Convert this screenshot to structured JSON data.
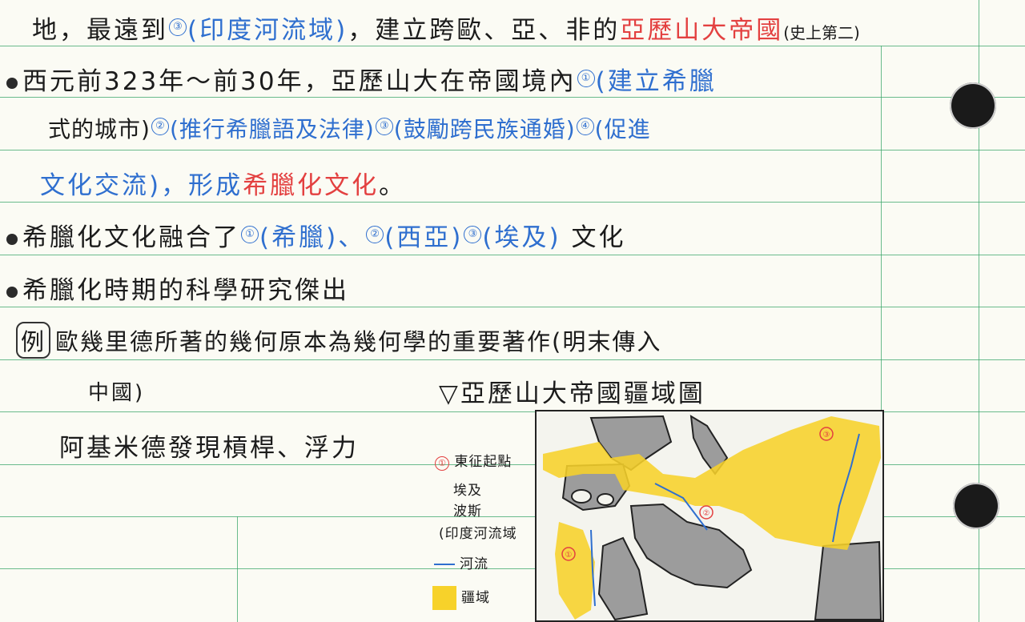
{
  "lines": {
    "l1": {
      "p1": "地，最遠到",
      "n1": "③",
      "p2": "(印度河流域)",
      "p3": "，建立跨歐、亞、非的",
      "red": "亞歷山大帝國",
      "tail": "(史上第二)"
    },
    "l2": {
      "p1": "西元前323年～前30年，亞歷山大在帝國境內",
      "n1": "①",
      "p2": "(建立希臘"
    },
    "l3": {
      "p1": "式的城市)",
      "n2": "②",
      "p2": "(推行希臘語及法律)",
      "n3": "③",
      "p3": "(鼓勵跨民族通婚)",
      "n4": "④",
      "p4": "(促進"
    },
    "l4": {
      "p1": "文化交流)，形成",
      "red": "希臘化文化",
      "p2": "。"
    },
    "l5": {
      "p1": "希臘化文化融合了",
      "n1": "①",
      "p2": "(希臘)、",
      "n2": "②",
      "p3": "(西亞)",
      "n3": "③",
      "p4": "(埃及)",
      "p5": "文化"
    },
    "l6": {
      "p1": "希臘化時期的科學研究傑出"
    },
    "l7": {
      "ex": "例",
      "p1": "歐幾里德所著的幾何原本為幾何學的重要著作(明末傳入"
    },
    "l8": {
      "p1": "中國)"
    },
    "l9": {
      "p1": "阿基米德發現槓桿、浮力"
    }
  },
  "map": {
    "title": "▽亞歷山大帝國疆域圖",
    "legend": {
      "n1": "①",
      "item1": "東征起點",
      "item2": "埃及",
      "item3": "波斯",
      "item4": "(印度河流域",
      "river_label": "河流",
      "territory_label": "疆域"
    },
    "markers": [
      "①",
      "②",
      "③"
    ],
    "colors": {
      "territory": "#f7d22a",
      "land": "#9c9c9c",
      "river": "#2f6fcf",
      "marker": "#e34040"
    }
  }
}
